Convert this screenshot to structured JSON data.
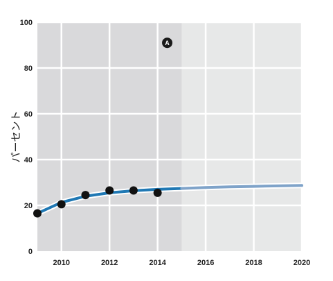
{
  "chart_data": {
    "type": "line",
    "title": "",
    "xlabel": "",
    "ylabel": "パーセント",
    "xlim": [
      2009,
      2020
    ],
    "ylim": [
      0,
      100
    ],
    "x_ticks": [
      "2010",
      "2012",
      "2014",
      "2016",
      "2018",
      "2020"
    ],
    "y_ticks": [
      "0",
      "20",
      "40",
      "60",
      "80",
      "100"
    ],
    "grid": true,
    "shaded_region": {
      "x_from": 2009,
      "x_to": 2015
    },
    "annotation": {
      "label": "A",
      "x": 2014.4,
      "y": 91
    },
    "series": [
      {
        "role": "observed",
        "style": "points",
        "color": "#111111",
        "x": [
          2009,
          2010,
          2011,
          2012,
          2013,
          2014
        ],
        "y": [
          16.5,
          20.5,
          24.5,
          26.5,
          26.5,
          25.5
        ]
      },
      {
        "role": "fitted",
        "style": "line",
        "color": "#1f78b4",
        "x": [
          2009,
          2010,
          2011,
          2012,
          2013,
          2014,
          2015
        ],
        "y": [
          16.5,
          21.3,
          24.0,
          25.5,
          26.4,
          27.0,
          27.4
        ]
      },
      {
        "role": "projected",
        "style": "line",
        "color": "#7fa3c9",
        "x": [
          2015,
          2016,
          2017,
          2018,
          2019,
          2020
        ],
        "y": [
          27.4,
          27.8,
          28.1,
          28.3,
          28.5,
          28.7
        ]
      }
    ],
    "colors": {
      "shade": "#d9d9db",
      "background": "#e7e8e8",
      "grid": "#ffffff",
      "text": "#222222"
    }
  }
}
